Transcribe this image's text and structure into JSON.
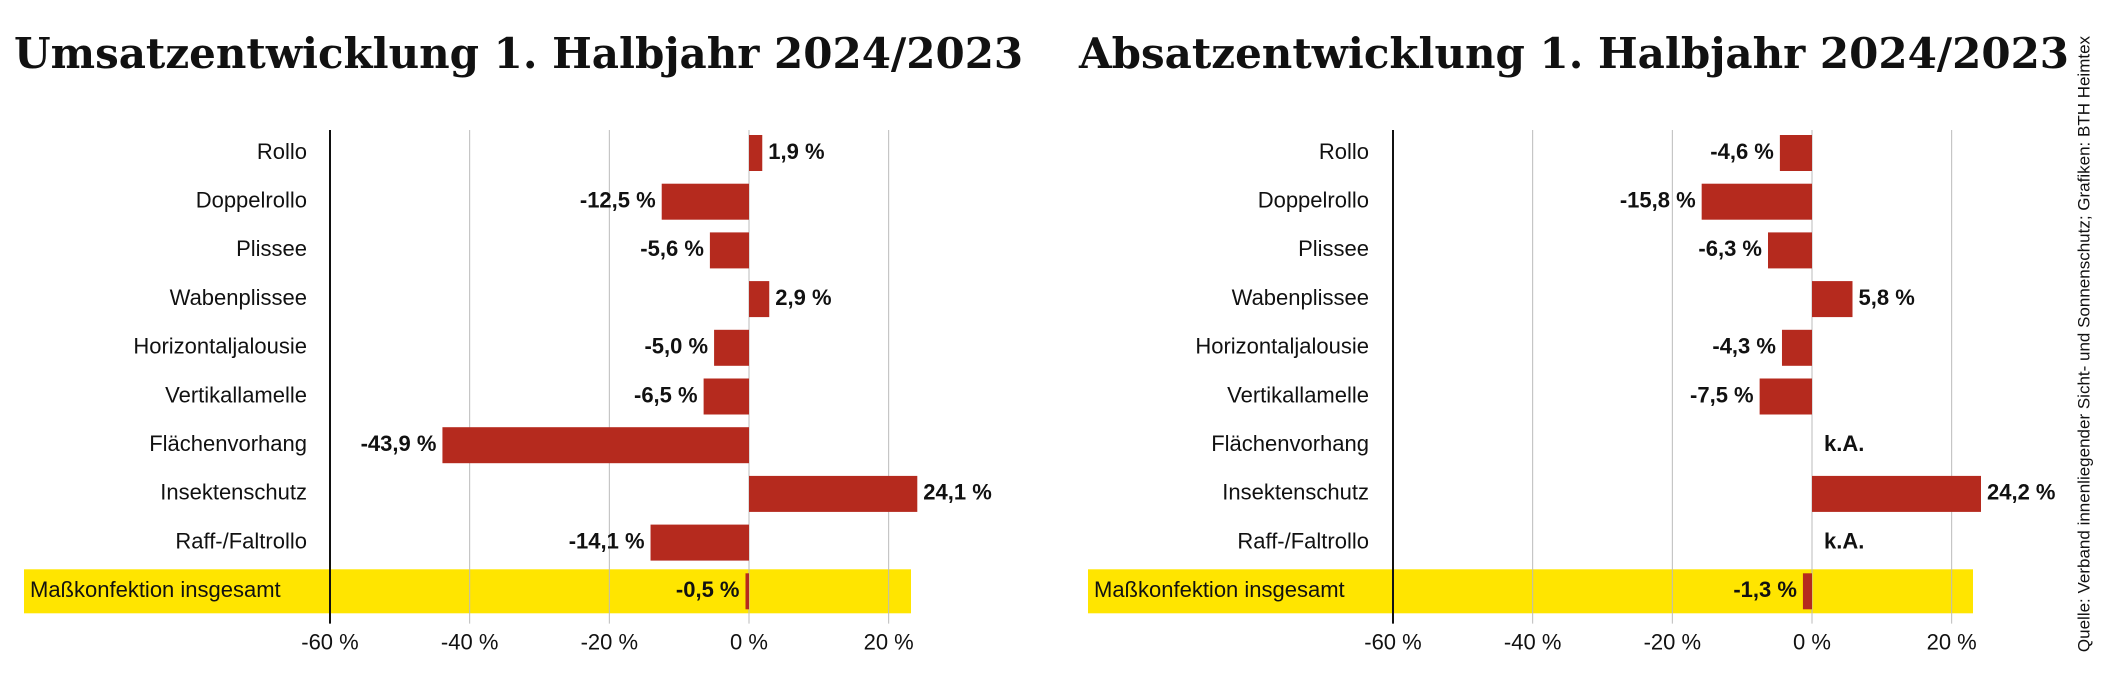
{
  "chart_data": [
    {
      "type": "bar",
      "orientation": "horizontal",
      "title": "Umsatzentwicklung 1. Halbjahr 2024/2023",
      "categories": [
        "Rollo",
        "Doppelrollo",
        "Plissee",
        "Wabenplissee",
        "Horizontaljalousie",
        "Vertikallamelle",
        "Flächenvorhang",
        "Insektenschutz",
        "Raff-/Faltrollo",
        "Maßkonfektion insgesamt"
      ],
      "values": [
        1.9,
        -12.5,
        -5.6,
        2.9,
        -5.0,
        -6.5,
        -43.9,
        24.1,
        -14.1,
        -0.5
      ],
      "value_labels": [
        "1,9 %",
        "-12,5 %",
        "-5,6 %",
        "2,9 %",
        "-5,0 %",
        "-6,5 %",
        "-43,9 %",
        "24,1 %",
        "-14,1 %",
        "-0,5 %"
      ],
      "color": "#b52a1e",
      "highlight_color": "#ffe500",
      "xlim": [
        -60,
        25
      ],
      "xticks": [
        {
          "value": -60,
          "label": "-60 %"
        },
        {
          "value": -40,
          "label": "-40 %"
        },
        {
          "value": -20,
          "label": "-20 %"
        },
        {
          "value": 0,
          "label": "0 %"
        },
        {
          "value": 20,
          "label": "20 %"
        }
      ],
      "grid": true
    },
    {
      "type": "bar",
      "orientation": "horizontal",
      "title": "Absatzentwicklung 1. Halbjahr 2024/2023",
      "categories": [
        "Rollo",
        "Doppelrollo",
        "Plissee",
        "Wabenplissee",
        "Horizontaljalousie",
        "Vertikallamelle",
        "Flächenvorhang",
        "Insektenschutz",
        "Raff-/Faltrollo",
        "Maßkonfektion insgesamt"
      ],
      "values": [
        -4.6,
        -15.8,
        -6.3,
        5.8,
        -4.3,
        -7.5,
        null,
        24.2,
        null,
        -1.3
      ],
      "value_labels": [
        "-4,6 %",
        "-15,8 %",
        "-6,3 %",
        "5,8 %",
        "-4,3 %",
        "-7,5 %",
        "k.A.",
        "24,2 %",
        "k.A.",
        "-1,3 %"
      ],
      "color": "#b52a1e",
      "highlight_color": "#ffe500",
      "xlim": [
        -60,
        25
      ],
      "xticks": [
        {
          "value": -60,
          "label": "-60 %"
        },
        {
          "value": -40,
          "label": "-40 %"
        },
        {
          "value": -20,
          "label": "-20 %"
        },
        {
          "value": 0,
          "label": "0 %"
        },
        {
          "value": 20,
          "label": "20 %"
        }
      ],
      "grid": true
    }
  ],
  "source": "Quelle: Verband innenliegender Sicht- und Sonnenschutz; Grafiken: BTH Heimtex"
}
